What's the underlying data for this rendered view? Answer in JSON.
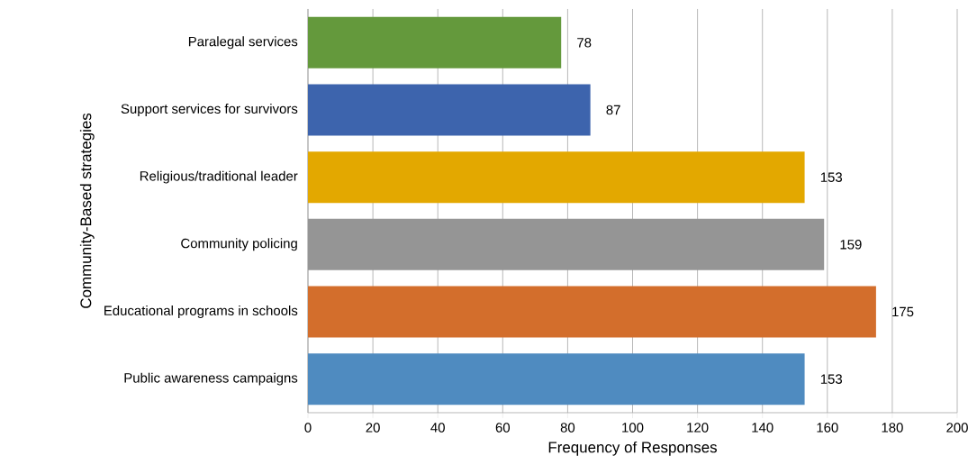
{
  "chart_data": {
    "type": "bar",
    "orientation": "horizontal",
    "xlabel": "Frequency of Responses",
    "ylabel": "Community-Based strategies",
    "categories": [
      "Paralegal services",
      "Support services for survivors",
      "Religious/traditional leader",
      "Community policing",
      "Educational programs in schools",
      "Public awareness campaigns"
    ],
    "values": [
      78,
      87,
      153,
      159,
      175,
      153
    ],
    "colors": [
      "#64993c",
      "#3d64ad",
      "#e3a800",
      "#959595",
      "#d36e2c",
      "#4f8bc0"
    ],
    "xlim": [
      0,
      200
    ],
    "xticks": [
      0,
      20,
      40,
      60,
      80,
      100,
      120,
      140,
      160,
      180,
      200
    ],
    "grid": "x",
    "data_labels": true
  }
}
